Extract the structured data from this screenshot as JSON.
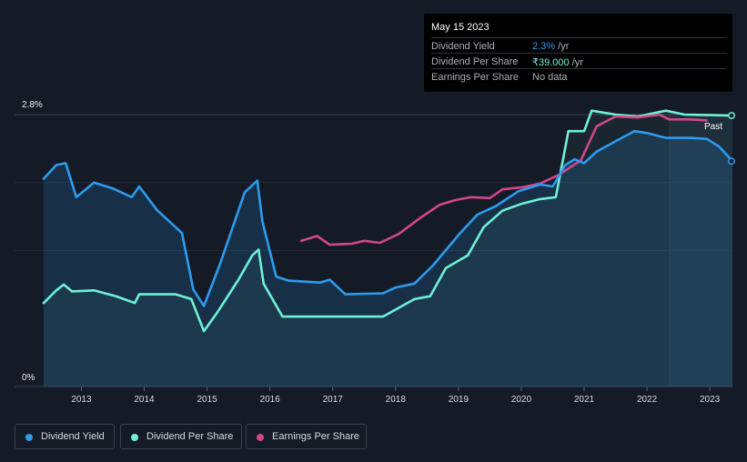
{
  "tooltip": {
    "date": "May 15 2023",
    "rows": [
      {
        "label": "Dividend Yield",
        "value": "2.3%",
        "unit": " /yr"
      },
      {
        "label": "Dividend Per Share",
        "value": "₹39.000",
        "unit": " /yr"
      },
      {
        "label": "Earnings Per Share",
        "value": "No data",
        "unit": ""
      }
    ]
  },
  "past_label": "Past",
  "colors": {
    "background": "#151b26",
    "dividend_yield": "#2c9bf0",
    "dividend_per_share": "#6ff0d7",
    "earnings_per_share": "#d1478a"
  },
  "legend": [
    {
      "label": "Dividend Yield",
      "color": "#2c9bf0"
    },
    {
      "label": "Dividend Per Share",
      "color": "#6ff0d7"
    },
    {
      "label": "Earnings Per Share",
      "color": "#d1478a"
    }
  ],
  "chart_data": {
    "type": "line",
    "y_tick_labels": [
      "2.8%",
      "0%"
    ],
    "ylim": [
      0,
      2.8
    ],
    "xlim": [
      2012.4,
      2023.36
    ],
    "x_ticks": [
      2013,
      2014,
      2015,
      2016,
      2017,
      2018,
      2019,
      2020,
      2021,
      2022,
      2023
    ],
    "x_tick_labels": [
      "2013",
      "2014",
      "2015",
      "2016",
      "2017",
      "2018",
      "2019",
      "2020",
      "2021",
      "2022",
      "2023"
    ],
    "grid": true,
    "legend_position": "bottom-left",
    "series": [
      {
        "name": "Dividend Yield",
        "unit": "%",
        "filled": true,
        "points": [
          [
            2012.4,
            2.14
          ],
          [
            2012.6,
            2.28
          ],
          [
            2012.75,
            2.3
          ],
          [
            2012.92,
            1.95
          ],
          [
            2013.2,
            2.1
          ],
          [
            2013.5,
            2.04
          ],
          [
            2013.8,
            1.95
          ],
          [
            2013.92,
            2.06
          ],
          [
            2014.2,
            1.82
          ],
          [
            2014.6,
            1.58
          ],
          [
            2014.78,
            1.0
          ],
          [
            2014.95,
            0.83
          ],
          [
            2015.2,
            1.25
          ],
          [
            2015.6,
            2.0
          ],
          [
            2015.8,
            2.12
          ],
          [
            2015.88,
            1.7
          ],
          [
            2016.1,
            1.13
          ],
          [
            2016.3,
            1.09
          ],
          [
            2016.8,
            1.07
          ],
          [
            2016.95,
            1.1
          ],
          [
            2017.2,
            0.95
          ],
          [
            2017.8,
            0.96
          ],
          [
            2018.0,
            1.02
          ],
          [
            2018.3,
            1.06
          ],
          [
            2018.6,
            1.25
          ],
          [
            2019.0,
            1.56
          ],
          [
            2019.3,
            1.77
          ],
          [
            2019.6,
            1.86
          ],
          [
            2019.95,
            2.01
          ],
          [
            2020.3,
            2.08
          ],
          [
            2020.5,
            2.06
          ],
          [
            2020.7,
            2.28
          ],
          [
            2020.85,
            2.34
          ],
          [
            2021.0,
            2.3
          ],
          [
            2021.2,
            2.42
          ],
          [
            2021.6,
            2.56
          ],
          [
            2021.8,
            2.63
          ],
          [
            2022.0,
            2.61
          ],
          [
            2022.3,
            2.56
          ],
          [
            2022.7,
            2.56
          ],
          [
            2022.95,
            2.55
          ],
          [
            2023.15,
            2.47
          ],
          [
            2023.36,
            2.32
          ]
        ]
      },
      {
        "name": "Dividend Per Share",
        "unit": "₹",
        "filled": true,
        "points": [
          [
            2012.4,
            0.86
          ],
          [
            2012.6,
            0.99
          ],
          [
            2012.72,
            1.05
          ],
          [
            2012.85,
            0.98
          ],
          [
            2013.2,
            0.99
          ],
          [
            2013.55,
            0.93
          ],
          [
            2013.85,
            0.86
          ],
          [
            2013.92,
            0.95
          ],
          [
            2014.5,
            0.95
          ],
          [
            2014.75,
            0.9
          ],
          [
            2014.95,
            0.57
          ],
          [
            2015.15,
            0.75
          ],
          [
            2015.5,
            1.1
          ],
          [
            2015.72,
            1.35
          ],
          [
            2015.82,
            1.41
          ],
          [
            2015.9,
            1.06
          ],
          [
            2016.2,
            0.72
          ],
          [
            2017.8,
            0.72
          ],
          [
            2018.3,
            0.9
          ],
          [
            2018.55,
            0.93
          ],
          [
            2018.8,
            1.22
          ],
          [
            2019.15,
            1.35
          ],
          [
            2019.4,
            1.64
          ],
          [
            2019.7,
            1.81
          ],
          [
            2020.0,
            1.88
          ],
          [
            2020.3,
            1.93
          ],
          [
            2020.55,
            1.95
          ],
          [
            2020.75,
            2.63
          ],
          [
            2021.0,
            2.63
          ],
          [
            2021.12,
            2.84
          ],
          [
            2021.5,
            2.8
          ],
          [
            2021.85,
            2.78
          ],
          [
            2022.3,
            2.84
          ],
          [
            2022.6,
            2.8
          ],
          [
            2023.36,
            2.79
          ]
        ]
      },
      {
        "name": "Earnings Per Share",
        "unit": "₹",
        "filled": false,
        "points": [
          [
            2016.5,
            1.5
          ],
          [
            2016.75,
            1.55
          ],
          [
            2016.95,
            1.46
          ],
          [
            2017.3,
            1.47
          ],
          [
            2017.5,
            1.5
          ],
          [
            2017.75,
            1.48
          ],
          [
            2018.05,
            1.57
          ],
          [
            2018.4,
            1.74
          ],
          [
            2018.7,
            1.87
          ],
          [
            2018.95,
            1.92
          ],
          [
            2019.2,
            1.95
          ],
          [
            2019.5,
            1.94
          ],
          [
            2019.7,
            2.03
          ],
          [
            2020.0,
            2.05
          ],
          [
            2020.3,
            2.09
          ],
          [
            2020.6,
            2.18
          ],
          [
            2020.95,
            2.33
          ],
          [
            2021.2,
            2.68
          ],
          [
            2021.5,
            2.78
          ],
          [
            2021.85,
            2.77
          ],
          [
            2022.2,
            2.8
          ],
          [
            2022.35,
            2.75
          ],
          [
            2022.7,
            2.75
          ],
          [
            2022.95,
            2.74
          ]
        ]
      }
    ]
  }
}
